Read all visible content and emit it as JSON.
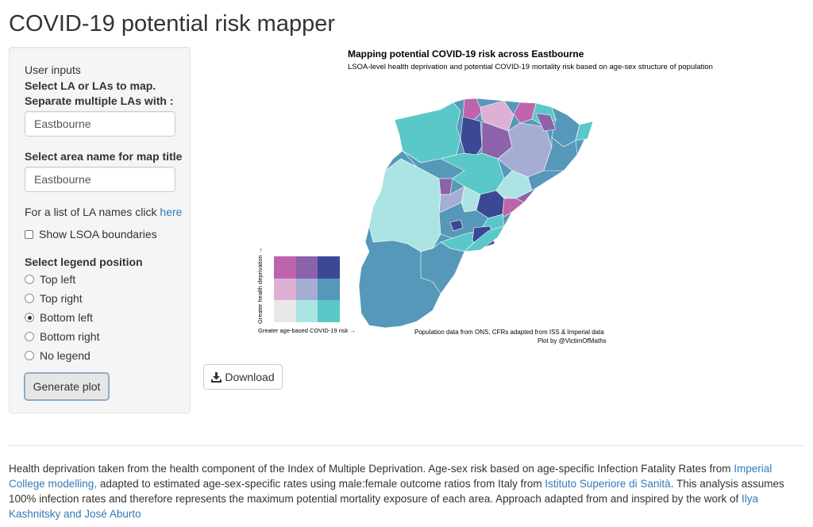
{
  "app": {
    "title": "COVID-19 potential risk mapper"
  },
  "sidebar": {
    "user_inputs_label": "User inputs",
    "la_label_line1": "Select LA or LAs to map.",
    "la_label_line2": "Separate multiple LAs with :",
    "la_value": "Eastbourne",
    "area_label": "Select area name for map title",
    "area_value": "Eastbourne",
    "la_list_hint": "For a list of LA names click ",
    "la_list_link": "here",
    "show_lsoa_label": "Show LSOA boundaries",
    "show_lsoa_checked": false,
    "legend_position_label": "Select legend position",
    "legend_options": [
      {
        "label": "Top left",
        "selected": false
      },
      {
        "label": "Top right",
        "selected": false
      },
      {
        "label": "Bottom left",
        "selected": true
      },
      {
        "label": "Bottom right",
        "selected": false
      },
      {
        "label": "No legend",
        "selected": false
      }
    ],
    "generate_label": "Generate plot"
  },
  "plot": {
    "title": "Mapping potential COVID-19 risk across Eastbourne",
    "subtitle": "LSOA-level health deprivation and potential COVID-19 mortality risk based on age-sex structure of population",
    "legend": {
      "x_label": "Greater age-based COVID-19 risk →",
      "y_label": "Greater health deprivation →",
      "colors": [
        [
          "#be64ac",
          "#8c62aa",
          "#3b4994"
        ],
        [
          "#dfb0d6",
          "#a5add3",
          "#5698b9"
        ],
        [
          "#e8e8e8",
          "#ace4e4",
          "#5ac8c8"
        ]
      ]
    },
    "credit_line1": "Population data from ONS, CFRs adapted from ISS & Imperial data",
    "credit_line2": "Plot by @VictimOfMaths",
    "map_icon": "choropleth-map"
  },
  "download": {
    "label": "Download",
    "icon": "download-icon"
  },
  "footer": {
    "t1": "Health deprivation taken from the health component of the Index of Multiple Deprivation. Age-sex risk based on age-specific Infection Fatality Rates from ",
    "link1": "Imperial College modelling,",
    "t2": " adapted to estimated age-sex-specific rates using male:female outcome ratios from Italy from ",
    "link2": "Istituto Superiore di Sanità",
    "t3": ". This analysis assumes 100% infection rates and therefore represents the maximum potential mortality exposure of each area. Approach adapted from and inspired by the work of ",
    "link3": "Ilya Kashnitsky and José Aburto"
  }
}
